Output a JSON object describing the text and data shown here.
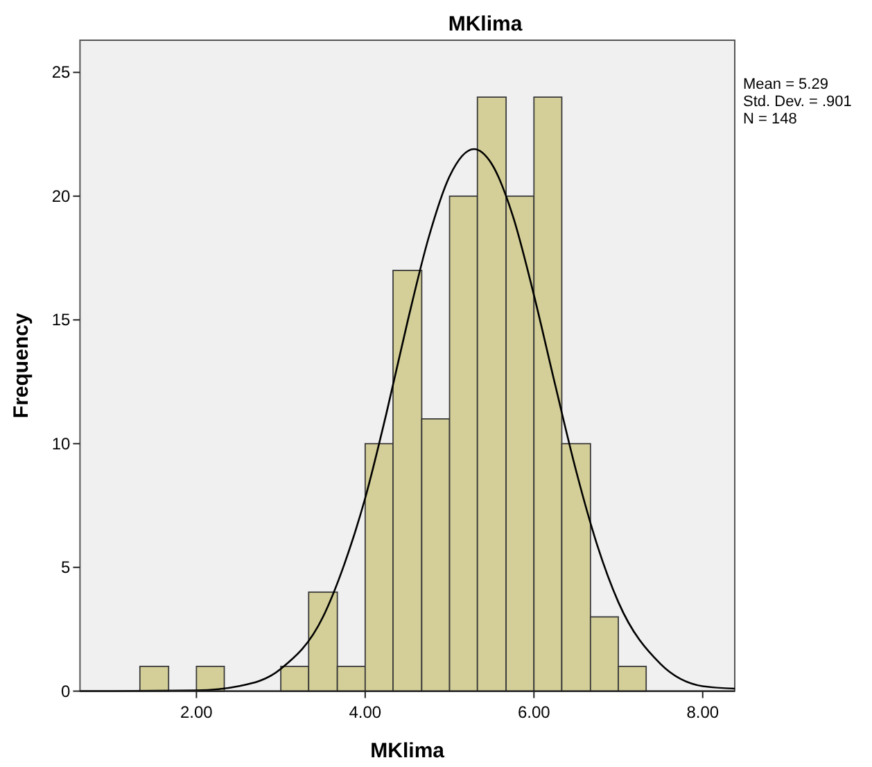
{
  "chart_data": {
    "type": "histogram",
    "title": "MKlima",
    "xlabel": "MKlima",
    "ylabel": "Frequency",
    "annotations": [
      "Mean = 5.29",
      "Std. Dev. = .901",
      "N = 148"
    ],
    "bins": [
      1.33,
      1.67,
      2,
      2.33,
      3,
      3.33,
      3.67,
      4,
      4.33,
      4.67,
      5,
      5.33,
      5.67,
      6,
      6.33,
      6.67,
      7,
      7.33
    ],
    "series": [
      {
        "color": "#d4cf98",
        "values": [
          1,
          0,
          1,
          0,
          1,
          4,
          1,
          10,
          17,
          11,
          20,
          24,
          20,
          24,
          10,
          3,
          1
        ]
      },
      {
        "type": "line",
        "color": "#000000",
        "x": [
          0.62,
          1,
          2,
          2.5,
          3,
          3.5,
          3.75,
          4,
          4.25,
          4.5,
          4.75,
          5,
          5.29,
          5.5,
          5.75,
          6,
          6.25,
          6.5,
          6.75,
          7,
          7.5,
          8,
          8.38
        ],
        "values": [
          0,
          0,
          0.03,
          0.2,
          0.9,
          3,
          5.1,
          7.8,
          11.2,
          14.9,
          18.3,
          20.8,
          21.9,
          21.3,
          19.2,
          16,
          12.4,
          8.9,
          5.9,
          3.6,
          1.1,
          0.2,
          0.1
        ]
      }
    ],
    "xlim": [
      0.62,
      8.38
    ],
    "ylim": [
      0,
      26.3
    ],
    "xticks": [
      {
        "value": 2,
        "label": "2.00"
      },
      {
        "value": 4,
        "label": "4.00"
      },
      {
        "value": 6,
        "label": "6.00"
      },
      {
        "value": 8,
        "label": "8.00"
      }
    ],
    "yticks": [
      0,
      5,
      10,
      15,
      20,
      25
    ],
    "grid": false,
    "marker": "none",
    "line_style": "solid"
  }
}
